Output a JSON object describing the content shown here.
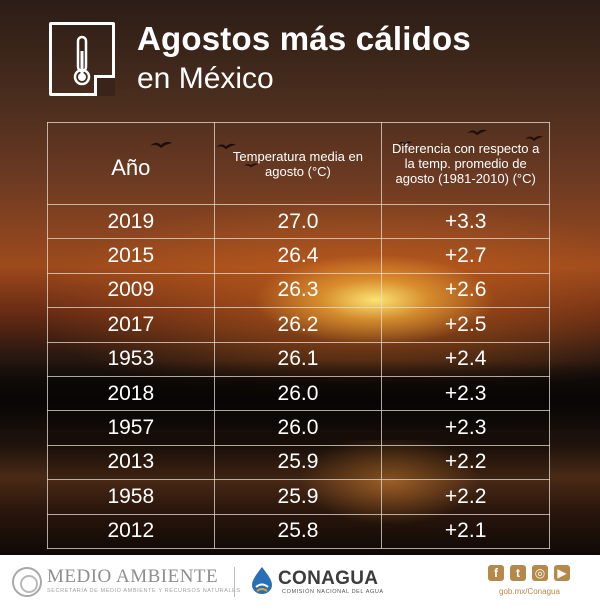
{
  "title": {
    "line1": "Agostos más cálidos",
    "line2": "en México"
  },
  "table": {
    "headers": {
      "year": "Año",
      "temp": "Temperatura media en agosto (°C)",
      "diff": "Diferencia con respecto a la temp. promedio de agosto (1981-2010) (°C)"
    },
    "rows": [
      {
        "year": "2019",
        "temp": "27.0",
        "diff": "+3.3"
      },
      {
        "year": "2015",
        "temp": "26.4",
        "diff": "+2.7"
      },
      {
        "year": "2009",
        "temp": "26.3",
        "diff": "+2.6"
      },
      {
        "year": "2017",
        "temp": "26.2",
        "diff": "+2.5"
      },
      {
        "year": "1953",
        "temp": "26.1",
        "diff": "+2.4"
      },
      {
        "year": "2018",
        "temp": "26.0",
        "diff": "+2.3"
      },
      {
        "year": "1957",
        "temp": "26.0",
        "diff": "+2.3"
      },
      {
        "year": "2013",
        "temp": "25.9",
        "diff": "+2.2"
      },
      {
        "year": "1958",
        "temp": "25.9",
        "diff": "+2.2"
      },
      {
        "year": "2012",
        "temp": "25.8",
        "diff": "+2.1"
      }
    ]
  },
  "footer": {
    "medio_ambiente": "MEDIO AMBIENTE",
    "medio_ambiente_sub": "SECRETARÍA DE MEDIO AMBIENTE Y RECURSOS NATURALES",
    "conagua": "CONAGUA",
    "conagua_sub": "COMISIÓN NACIONAL DEL AGUA",
    "handle": "gob.mx/Conagua",
    "social_icons": [
      "facebook-icon",
      "twitter-icon",
      "instagram-icon",
      "youtube-icon"
    ],
    "accent_color": "#b5894a"
  }
}
